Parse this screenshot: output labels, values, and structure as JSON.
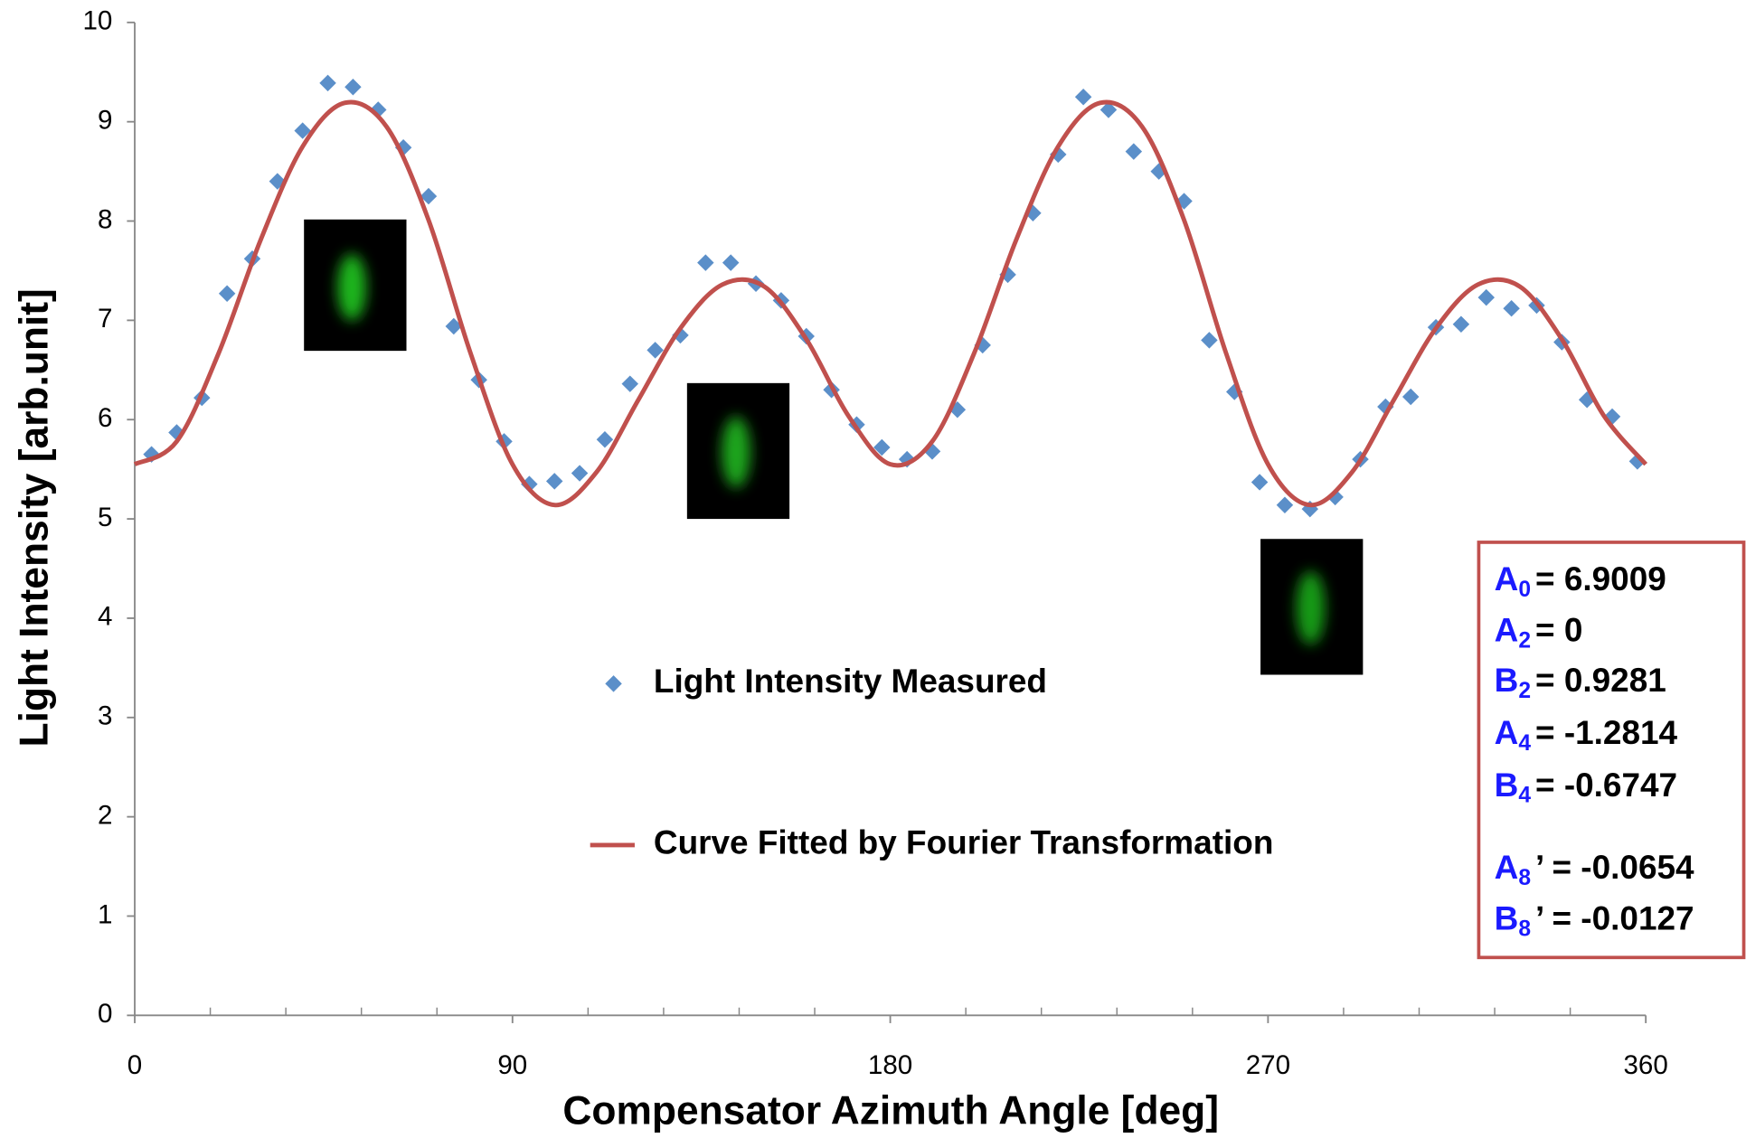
{
  "chart_data": {
    "type": "scatter",
    "x_label": "Compensator Azimuth Angle  [deg]",
    "y_label": "Light Intensity   [arb.unit]",
    "xlim": [
      0,
      360
    ],
    "xticks": [
      0,
      90,
      180,
      270,
      360
    ],
    "xminorticks": [
      18,
      36,
      54,
      72,
      108,
      126,
      144,
      162,
      198,
      216,
      234,
      252,
      288,
      306,
      324,
      342
    ],
    "ylim": [
      0,
      10
    ],
    "yticks": [
      0,
      1,
      2,
      3,
      4,
      5,
      6,
      7,
      8,
      9,
      10
    ],
    "series": [
      {
        "name": "Light Intensity Measured",
        "type": "scatter",
        "color": "#5b8fc9",
        "x": [
          4,
          10,
          16,
          22,
          28,
          34,
          40,
          46,
          52,
          58,
          64,
          70,
          76,
          82,
          88,
          94,
          100,
          106,
          112,
          118,
          124,
          130,
          136,
          142,
          148,
          154,
          160,
          166,
          172,
          178,
          184,
          190,
          196,
          202,
          208,
          214,
          220,
          226,
          232,
          238,
          244,
          250,
          256,
          262,
          268,
          274,
          280,
          286,
          292,
          298,
          304,
          310,
          316,
          322,
          328,
          334,
          340,
          346,
          352,
          358
        ],
        "values": [
          5.65,
          5.87,
          6.22,
          7.27,
          7.62,
          8.4,
          8.91,
          9.39,
          9.35,
          9.12,
          8.74,
          8.25,
          6.94,
          6.4,
          5.78,
          5.35,
          5.38,
          5.46,
          5.8,
          6.36,
          6.7,
          6.85,
          7.58,
          7.58,
          7.37,
          7.2,
          6.84,
          6.3,
          5.95,
          5.72,
          5.6,
          5.68,
          6.1,
          6.75,
          7.46,
          8.08,
          8.67,
          9.25,
          9.12,
          8.7,
          8.5,
          8.2,
          6.8,
          6.28,
          5.37,
          5.14,
          5.1,
          5.22,
          5.6,
          6.13,
          6.23,
          6.93,
          6.96,
          7.23,
          7.12,
          7.15,
          6.78,
          6.2,
          6.03,
          5.58
        ]
      },
      {
        "name": "Curve Fitted by Fourier Transformation",
        "type": "line",
        "color": "#c0504d",
        "x": [
          0,
          10,
          20,
          30,
          40,
          50,
          60,
          70,
          80,
          90,
          100,
          110,
          120,
          130,
          140,
          150,
          160,
          170,
          180,
          190,
          200,
          210,
          220,
          230,
          240,
          250,
          260,
          270,
          280,
          290,
          300,
          310,
          320,
          330,
          340,
          350,
          360
        ],
        "values": [
          5.55,
          5.78,
          6.67,
          7.81,
          8.75,
          9.19,
          8.95,
          8.01,
          6.67,
          5.55,
          5.14,
          5.47,
          6.2,
          6.92,
          7.36,
          7.34,
          6.81,
          6.04,
          5.55,
          5.78,
          6.67,
          7.81,
          8.75,
          9.19,
          8.95,
          8.01,
          6.67,
          5.55,
          5.14,
          5.47,
          6.2,
          6.92,
          7.36,
          7.34,
          6.81,
          6.04,
          5.55
        ]
      }
    ],
    "coefficients": [
      {
        "symbol": "A",
        "sub": "0",
        "text": "= 6.9009"
      },
      {
        "symbol": "A",
        "sub": "2",
        "text": "= 0"
      },
      {
        "symbol": "B",
        "sub": "2",
        "text": "= 0.9281"
      },
      {
        "symbol": "A",
        "sub": "4",
        "text": "= -1.2814"
      },
      {
        "symbol": "B",
        "sub": "4",
        "text": "= -0.6747"
      },
      {
        "symbol": "A",
        "sub": "8",
        "text": "’ = -0.0654"
      },
      {
        "symbol": "B",
        "sub": "8",
        "text": "’ = -0.0127"
      }
    ]
  }
}
